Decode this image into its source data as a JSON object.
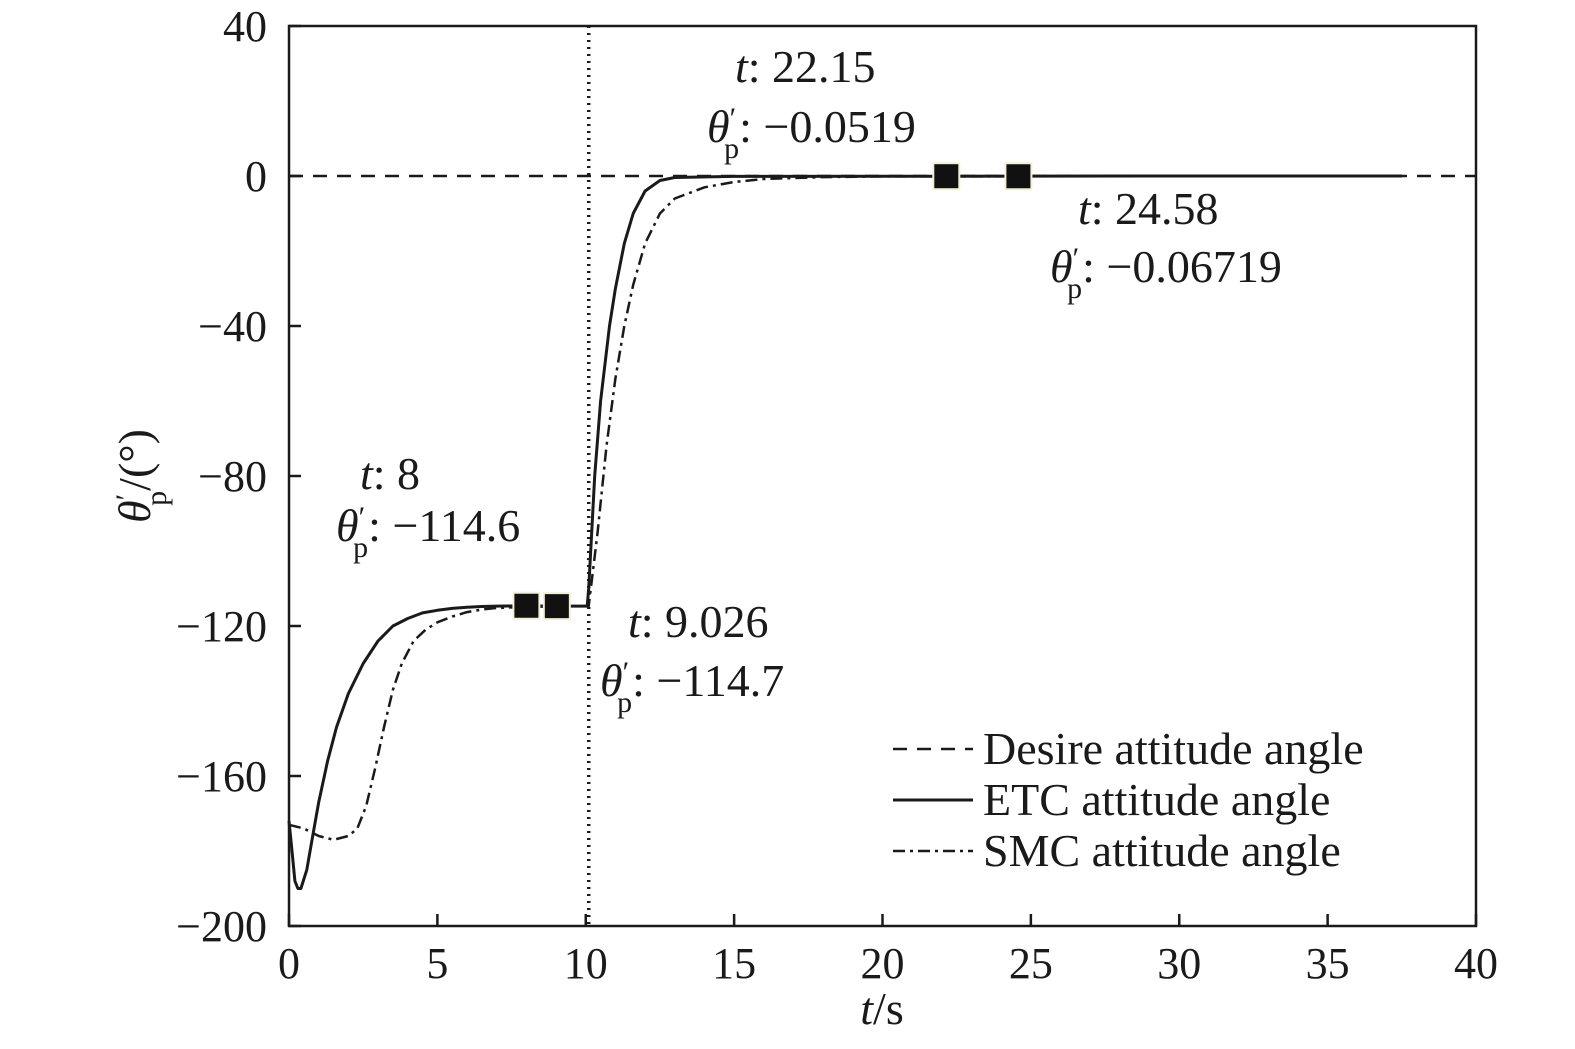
{
  "chart_data": {
    "type": "line",
    "xlabel": {
      "var": "t",
      "unit": "/s"
    },
    "ylabel": {
      "var": "θ",
      "prime": "′",
      "sub": "p",
      "unit": "/(°)"
    },
    "xlim": [
      0,
      40
    ],
    "ylim": [
      -200,
      40
    ],
    "xticks": [
      0,
      5,
      10,
      15,
      20,
      25,
      30,
      35,
      40
    ],
    "yticks": [
      40,
      0,
      -40,
      -80,
      -120,
      -160,
      -200
    ],
    "tick_labels_x": [
      "0",
      "5",
      "10",
      "15",
      "20",
      "25",
      "30",
      "35",
      "40"
    ],
    "tick_labels_y": [
      "40",
      "0",
      "−40",
      "−80",
      "−120",
      "−160",
      "−200"
    ],
    "grid": false,
    "legend_position": "bottom-right",
    "vertical_marker_x": 10.1,
    "series": [
      {
        "name": "Desire attitude angle",
        "style": "dashed",
        "x": [
          0,
          40
        ],
        "y": [
          0,
          0
        ]
      },
      {
        "name": "ETC attitude angle",
        "style": "solid",
        "x": [
          0,
          0.1,
          0.2,
          0.3,
          0.4,
          0.6,
          0.8,
          1.0,
          1.3,
          1.6,
          2.0,
          2.5,
          3.0,
          3.5,
          4.0,
          4.5,
          5.0,
          5.5,
          6.0,
          6.5,
          7.0,
          8.0,
          9.026,
          10.0,
          10.05,
          10.1,
          10.3,
          10.5,
          10.8,
          11.0,
          11.3,
          11.6,
          12.0,
          12.5,
          13.0,
          15.0,
          20.0,
          22.15,
          25.0,
          30.0,
          37.5
        ],
        "y": [
          -172,
          -180,
          -188,
          -190,
          -190,
          -185,
          -176,
          -167,
          -156,
          -147,
          -138,
          -130,
          -124,
          -120,
          -118,
          -116.5,
          -115.8,
          -115.3,
          -115.0,
          -114.8,
          -114.7,
          -114.6,
          -114.7,
          -114.7,
          -114.7,
          -110,
          -80,
          -60,
          -40,
          -30,
          -18,
          -10,
          -4,
          -1.2,
          -0.4,
          -0.1,
          -0.05,
          -0.0519,
          -0.03,
          0,
          0
        ]
      },
      {
        "name": "SMC attitude angle",
        "style": "dashdot",
        "x": [
          0,
          0.5,
          1.0,
          1.5,
          2.0,
          2.3,
          2.6,
          2.9,
          3.2,
          3.5,
          3.8,
          4.2,
          4.6,
          5.0,
          5.5,
          6.0,
          6.5,
          7.0,
          8.0,
          9.0,
          10.0,
          10.05,
          10.1,
          10.4,
          10.7,
          11.0,
          11.3,
          11.6,
          12.0,
          12.5,
          13.0,
          14.0,
          15.0,
          16.0,
          18.0,
          20.0,
          24.58,
          30.0,
          37.5
        ],
        "y": [
          -173,
          -174,
          -176,
          -177,
          -176,
          -174,
          -168,
          -158,
          -147,
          -137,
          -130,
          -124,
          -121,
          -119,
          -117.5,
          -116.3,
          -115.6,
          -115.2,
          -114.9,
          -114.8,
          -114.7,
          -114.7,
          -114.7,
          -95,
          -72,
          -54,
          -40,
          -29,
          -18,
          -10,
          -6,
          -3,
          -1.6,
          -0.8,
          -0.3,
          -0.1,
          -0.06719,
          0,
          0
        ]
      }
    ],
    "markers": [
      {
        "x": 8,
        "y": -114.6
      },
      {
        "x": 9.026,
        "y": -114.7
      },
      {
        "x": 22.15,
        "y": -0.0519
      },
      {
        "x": 24.58,
        "y": -0.06719
      }
    ],
    "annotations": [
      {
        "t_label": "t",
        "t_value": ": 8",
        "theta_value": ": −114.6"
      },
      {
        "t_label": "t",
        "t_value": ": 9.026",
        "theta_value": ": −114.7"
      },
      {
        "t_label": "t",
        "t_value": ": 22.15",
        "theta_value": ": −0.0519"
      },
      {
        "t_label": "t",
        "t_value": ": 24.58",
        "theta_value": ": −0.06719"
      }
    ],
    "theta_symbol": {
      "var": "θ",
      "prime": "′",
      "sub": "p"
    }
  }
}
